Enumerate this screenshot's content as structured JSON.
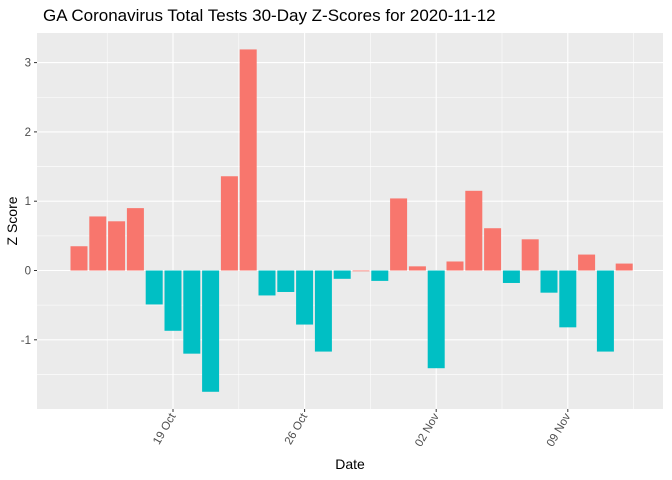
{
  "chart_data": {
    "type": "bar",
    "title": "GA Coronavirus Total Tests 30-Day Z-Scores for 2020-11-12",
    "xlabel": "Date",
    "ylabel": "Z Score",
    "x_start_date": "2020-10-14",
    "x_end_date": "2020-11-12",
    "x_tick_labels": [
      "19 Oct",
      "26 Oct",
      "02 Nov",
      "09 Nov"
    ],
    "y_tick_labels": [
      "-1",
      "0",
      "1",
      "2",
      "3"
    ],
    "ylim": [
      -1.75,
      3.25
    ],
    "grid": true,
    "legend": "none",
    "colors": {
      "positive": "#F8766D",
      "negative": "#00BFC4",
      "panel": "#EBEBEB",
      "grid": "#FFFFFF"
    },
    "series": [
      {
        "dates": [
          "2020-10-14",
          "2020-10-15",
          "2020-10-16",
          "2020-10-17",
          "2020-10-18",
          "2020-10-19",
          "2020-10-20",
          "2020-10-21",
          "2020-10-22",
          "2020-10-23",
          "2020-10-24",
          "2020-10-25",
          "2020-10-26",
          "2020-10-27",
          "2020-10-28",
          "2020-10-29",
          "2020-10-30",
          "2020-10-31",
          "2020-11-01",
          "2020-11-02",
          "2020-11-03",
          "2020-11-04",
          "2020-11-05",
          "2020-11-06",
          "2020-11-07",
          "2020-11-08",
          "2020-11-09",
          "2020-11-10",
          "2020-11-11",
          "2020-11-12"
        ],
        "values": [
          0.35,
          0.78,
          0.71,
          0.9,
          -0.49,
          -0.87,
          -1.2,
          -1.75,
          1.36,
          3.19,
          -0.36,
          -0.31,
          -0.78,
          -1.17,
          -0.12,
          0.0,
          -0.15,
          1.04,
          0.06,
          -1.41,
          0.13,
          1.15,
          0.61,
          -0.18,
          0.45,
          -0.32,
          -0.82,
          0.23,
          -1.17,
          0.1
        ]
      }
    ]
  }
}
